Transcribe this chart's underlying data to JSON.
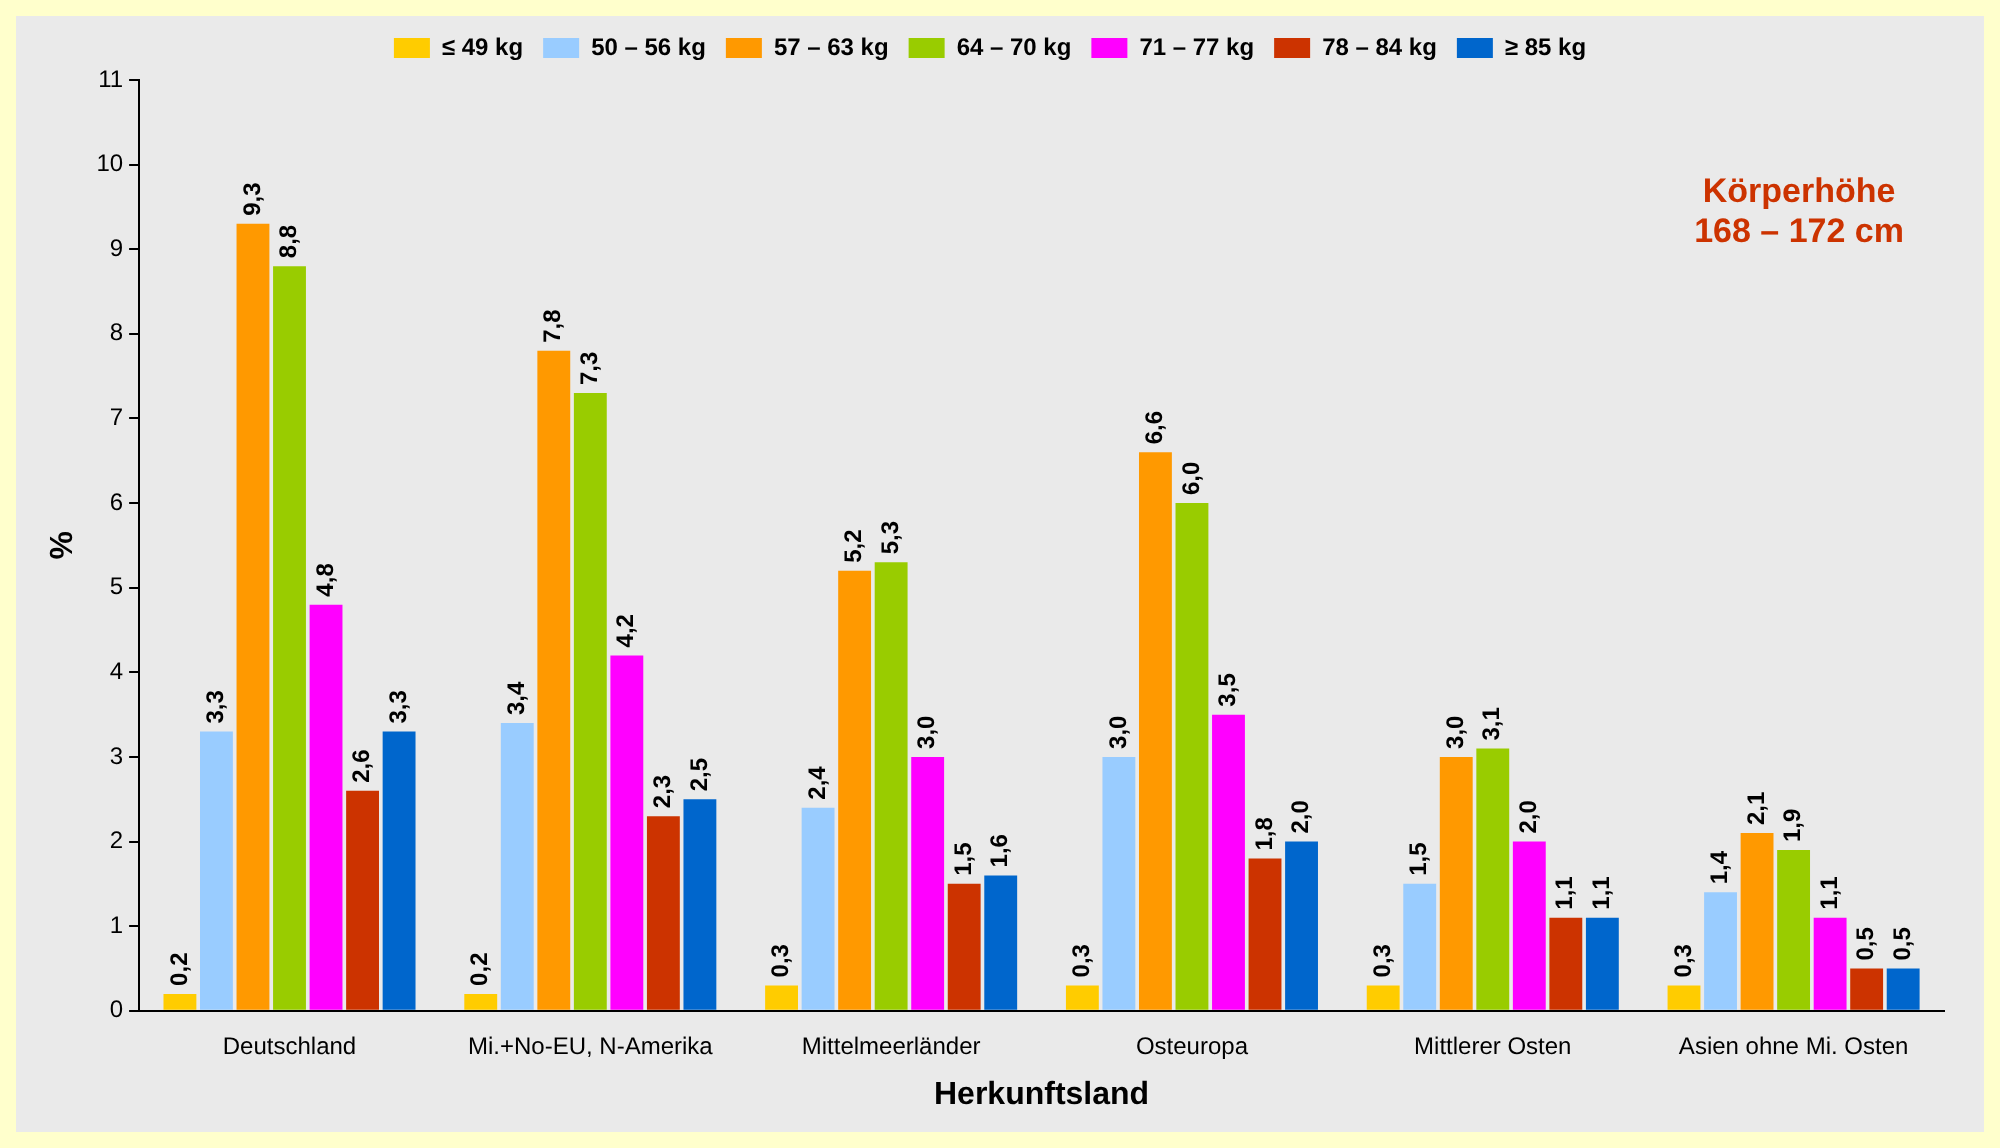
{
  "chart_data": {
    "type": "bar",
    "xlabel": "Herkunftsland",
    "ylabel": "%",
    "categories": [
      "Deutschland",
      "Mi.+No-EU, N-Amerika",
      "Mittelmeerländer",
      "Osteuropa",
      "Mittlerer Osten",
      "Asien ohne Mi. Osten"
    ],
    "series": [
      {
        "name": "≤ 49 kg",
        "color": "#ffcc00",
        "values": [
          0.2,
          0.2,
          0.3,
          0.3,
          0.3,
          0.3
        ],
        "value_labels": [
          "0,2",
          "0,2",
          "0,3",
          "0,3",
          "0,3",
          "0,3"
        ]
      },
      {
        "name": "50 – 56 kg",
        "color": "#99ccff",
        "values": [
          3.3,
          3.4,
          2.4,
          3.0,
          1.5,
          1.4
        ],
        "value_labels": [
          "3,3",
          "3,4",
          "2,4",
          "3,0",
          "1,5",
          "1,4"
        ]
      },
      {
        "name": "57 – 63 kg",
        "color": "#ff9900",
        "values": [
          9.3,
          7.8,
          5.2,
          6.6,
          3.0,
          2.1
        ],
        "value_labels": [
          "9,3",
          "7,8",
          "5,2",
          "6,6",
          "3,0",
          "2,1"
        ]
      },
      {
        "name": "64 – 70 kg",
        "color": "#99cc00",
        "values": [
          8.8,
          7.3,
          5.3,
          6.0,
          3.1,
          1.9
        ],
        "value_labels": [
          "8,8",
          "7,3",
          "5,3",
          "6,0",
          "3,1",
          "1,9"
        ]
      },
      {
        "name": "71 – 77 kg",
        "color": "#ff00ff",
        "values": [
          4.8,
          4.2,
          3.0,
          3.5,
          2.0,
          1.1
        ],
        "value_labels": [
          "4,8",
          "4,2",
          "3,0",
          "3,5",
          "2,0",
          "1,1"
        ]
      },
      {
        "name": "78 – 84 kg",
        "color": "#cc3300",
        "values": [
          2.6,
          2.3,
          1.5,
          1.8,
          1.1,
          0.5
        ],
        "value_labels": [
          "2,6",
          "2,3",
          "1,5",
          "1,8",
          "1,1",
          "0,5"
        ]
      },
      {
        "name": "≥ 85 kg",
        "color": "#0066cc",
        "values": [
          3.3,
          2.5,
          1.6,
          2.0,
          1.1,
          0.5
        ],
        "value_labels": [
          "3,3",
          "2,5",
          "1,6",
          "2,0",
          "1,1",
          "0,5"
        ]
      }
    ],
    "ylim": [
      0,
      11
    ],
    "yticks": [
      0,
      1,
      2,
      3,
      4,
      5,
      6,
      7,
      8,
      9,
      10,
      11
    ],
    "grid": false,
    "legend": "top",
    "annotations": [
      "Körperhöhe\n168 – 172 cm"
    ]
  }
}
